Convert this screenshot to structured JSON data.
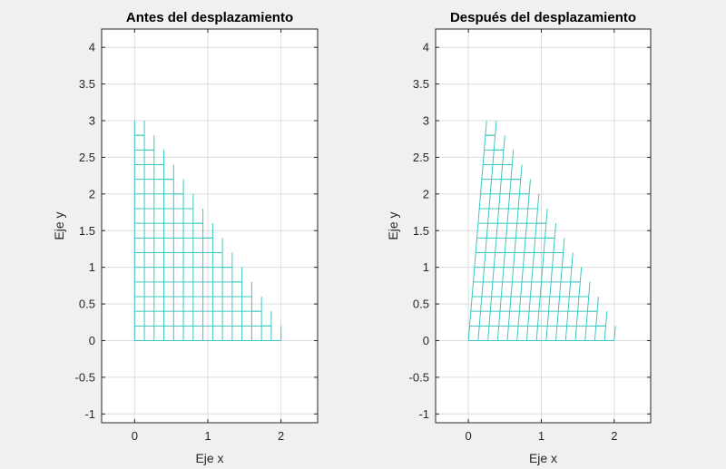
{
  "figure": {
    "background": "#f0f0f0",
    "mesh_color": "#3cc8c0"
  },
  "chart_data": [
    {
      "type": "mesh",
      "title": "Antes del desplazamiento",
      "xlabel": "Eje x",
      "ylabel": "Eje y",
      "xlim": [
        -0.45,
        2.5
      ],
      "ylim": [
        -1.12,
        4.25
      ],
      "xticks": [
        0,
        1,
        2
      ],
      "yticks": [
        -1,
        -0.5,
        0,
        0.5,
        1,
        1.5,
        2,
        2.5,
        3,
        3.5,
        4
      ],
      "xticklabels": [
        "0",
        "1",
        "2"
      ],
      "yticklabels": [
        "-1",
        "-0.5",
        "0",
        "0.5",
        "1",
        "1.5",
        "2",
        "2.5",
        "3",
        "3.5",
        "4"
      ],
      "grid": true,
      "mesh": {
        "shape": "right-triangle",
        "vertices": [
          [
            0,
            0
          ],
          [
            2,
            0
          ],
          [
            0,
            3
          ]
        ],
        "divisions": 15,
        "displacement": "none"
      }
    },
    {
      "type": "mesh",
      "title": "Después del desplazamiento",
      "xlabel": "Eje x",
      "ylabel": "Eje y",
      "xlim": [
        -0.45,
        2.5
      ],
      "ylim": [
        -1.12,
        4.25
      ],
      "xticks": [
        0,
        1,
        2
      ],
      "yticks": [
        -1,
        -0.5,
        0,
        0.5,
        1,
        1.5,
        2,
        2.5,
        3,
        3.5,
        4
      ],
      "xticklabels": [
        "0",
        "1",
        "2"
      ],
      "yticklabels": [
        "-1",
        "-0.5",
        "0",
        "0.5",
        "1",
        "1.5",
        "2",
        "2.5",
        "3",
        "3.5",
        "4"
      ],
      "grid": true,
      "mesh": {
        "shape": "right-triangle",
        "vertices": [
          [
            0,
            0
          ],
          [
            2,
            0
          ],
          [
            0.25,
            3
          ]
        ],
        "divisions": 15,
        "displacement": "shear: x' = x + 0.0833*y"
      }
    }
  ]
}
